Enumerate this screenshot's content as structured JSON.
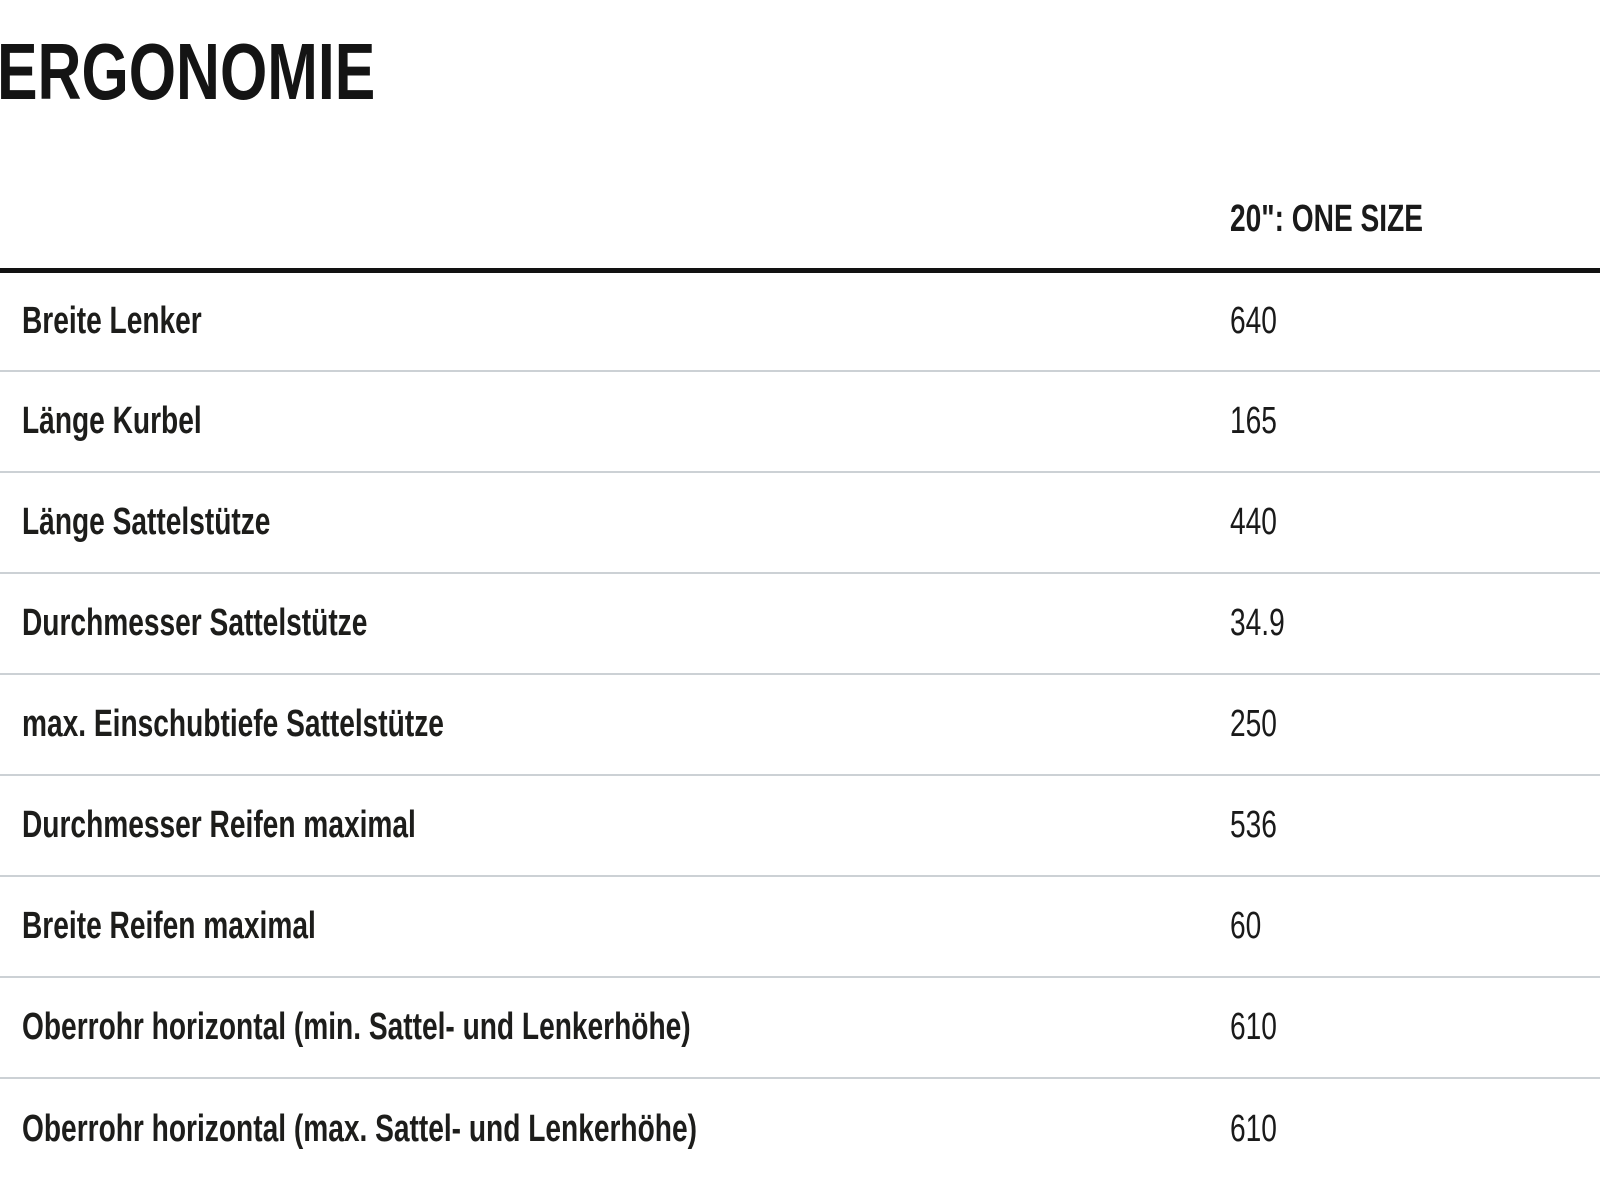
{
  "section": {
    "title": "ERGONOMIE"
  },
  "table": {
    "columns": [
      {
        "label": ""
      },
      {
        "label": "20\": ONE SIZE"
      }
    ],
    "rows": [
      {
        "label": "Breite Lenker",
        "value": "640"
      },
      {
        "label": "Länge Kurbel",
        "value": "165"
      },
      {
        "label": "Länge Sattelstütze",
        "value": "440"
      },
      {
        "label": "Durchmesser Sattelstütze",
        "value": "34.9"
      },
      {
        "label": "max. Einschubtiefe Sattelstütze",
        "value": "250"
      },
      {
        "label": "Durchmesser Reifen maximal",
        "value": "536"
      },
      {
        "label": "Breite Reifen maximal",
        "value": "60"
      },
      {
        "label": "Oberrohr horizontal (min. Sattel- und Lenkerhöhe)",
        "value": "610"
      },
      {
        "label": "Oberrohr horizontal (max. Sattel- und Lenkerhöhe)",
        "value": "610"
      }
    ]
  },
  "colors": {
    "text": "#1a1a1a",
    "title": "#141414",
    "separator": "#ccd1d5",
    "header_rule": "#121212",
    "background": "#ffffff"
  }
}
